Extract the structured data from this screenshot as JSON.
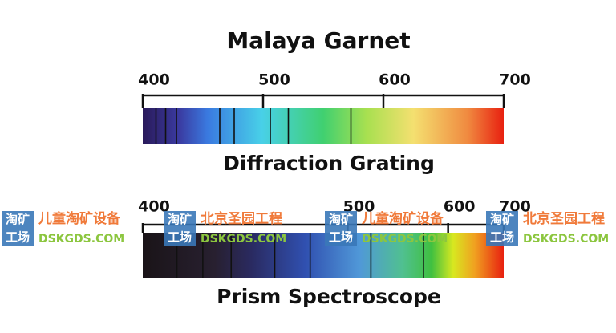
{
  "title": "Malaya Garnet",
  "spectra": [
    {
      "scale": "linear",
      "xlim": [
        400,
        700
      ],
      "ticks": [
        400,
        500,
        600,
        700
      ],
      "lines": [
        411,
        419,
        428,
        464,
        476,
        506,
        521,
        573
      ],
      "caption": "Diffraction Grating"
    },
    {
      "scale": "prism",
      "xlim": [
        400,
        700
      ],
      "ticks": [
        400,
        500,
        600,
        700
      ],
      "lines": [
        412,
        422,
        434,
        455,
        475,
        518,
        569
      ],
      "caption": "Prism Spectroscope"
    }
  ],
  "watermarks": [
    {
      "badge": [
        "淘矿",
        "工场"
      ],
      "name": "儿童淘矿设备",
      "site": "DSKGDS.COM"
    },
    {
      "badge": [
        "淘矿",
        "工场"
      ],
      "name": "北京圣园工程",
      "site": "DSKGDS.COM"
    },
    {
      "badge": [
        "淘矿",
        "工场"
      ],
      "name": "儿童淘矿设备",
      "site": "DSKGDS.COM"
    },
    {
      "badge": [
        "淘矿",
        "工场"
      ],
      "name": "北京圣园工程",
      "site": "DSKGDS.COM"
    }
  ]
}
